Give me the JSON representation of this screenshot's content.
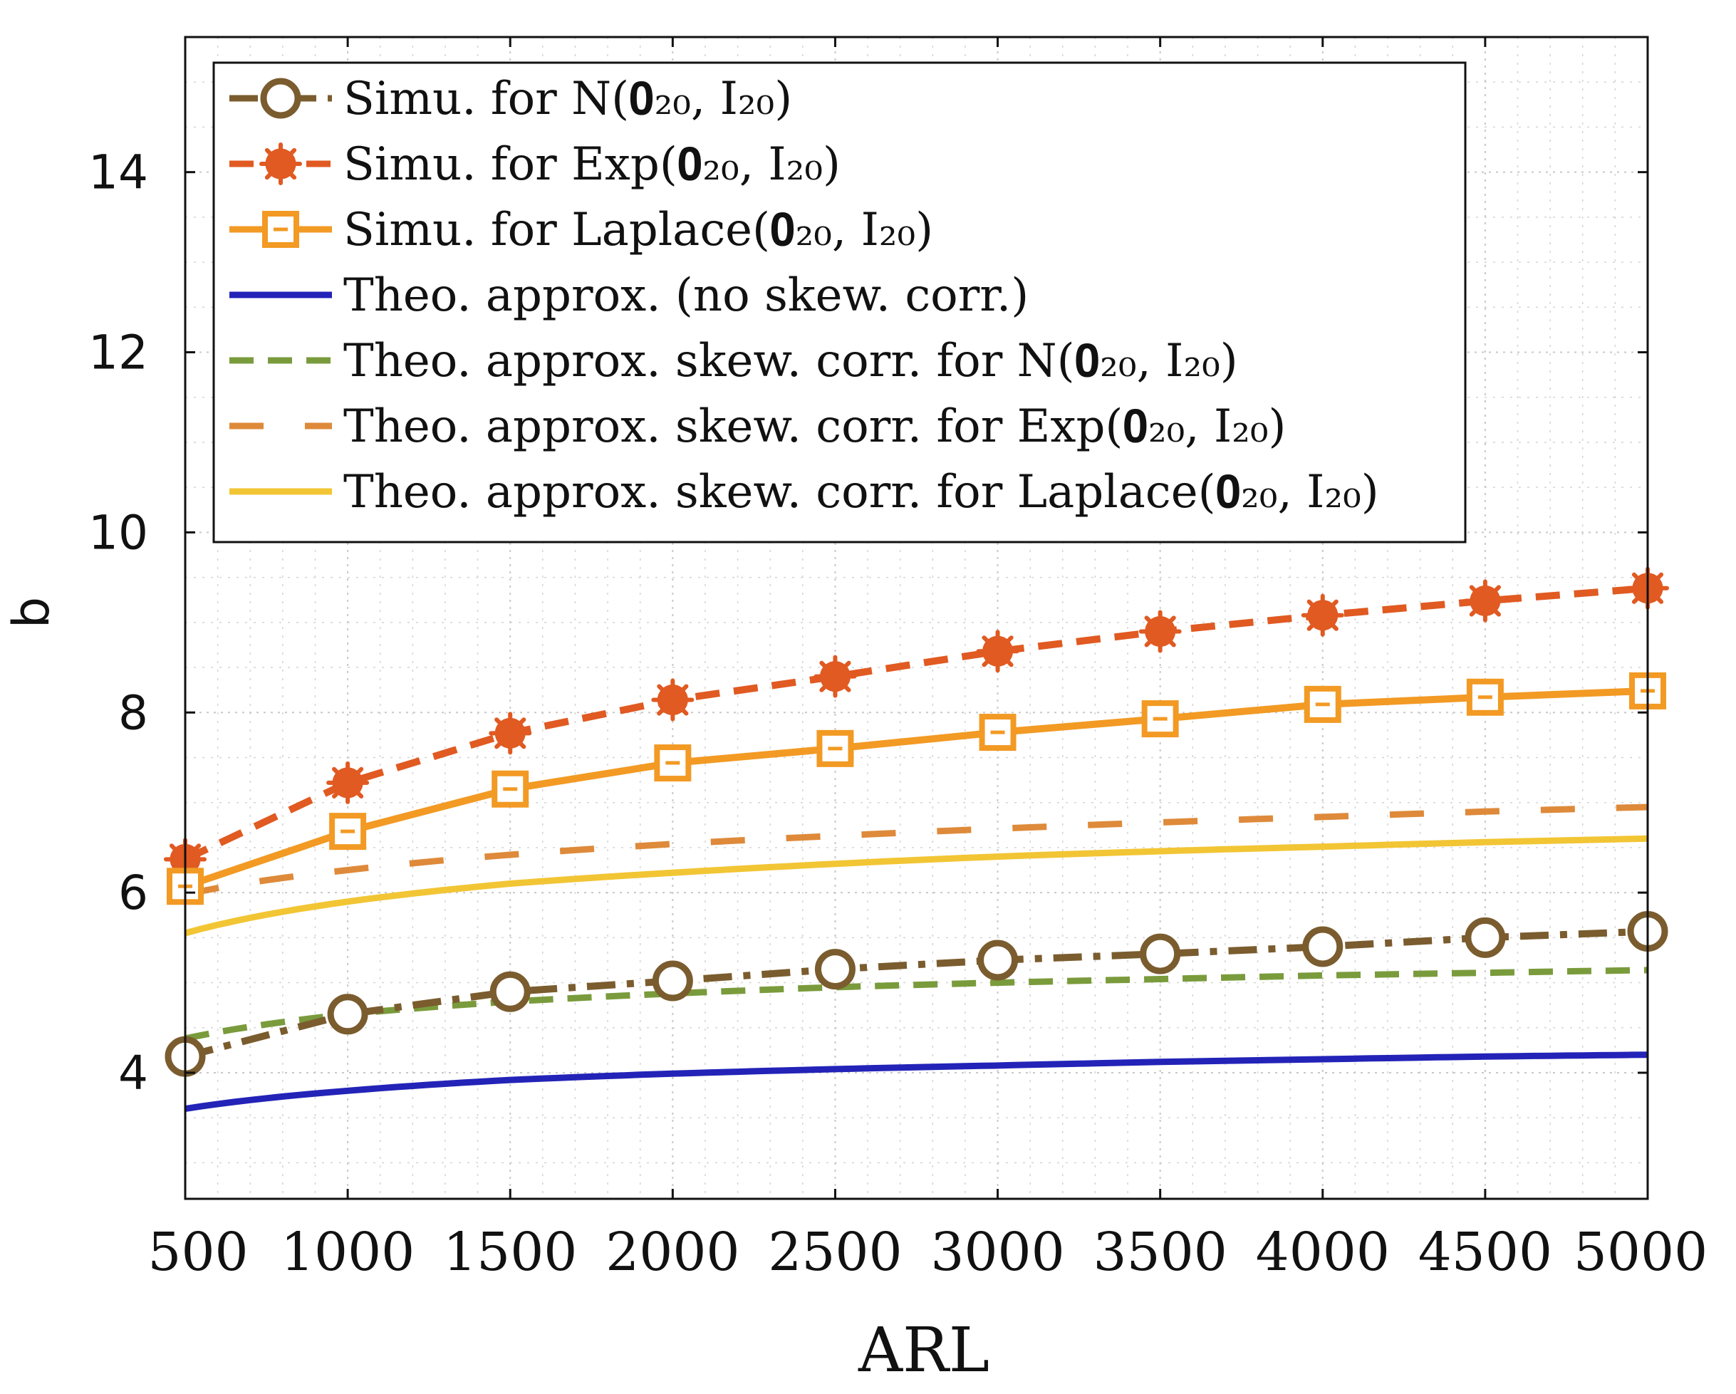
{
  "chart_data": {
    "type": "line",
    "title": "",
    "xlabel": "ARL",
    "ylabel": "b",
    "x": [
      500,
      1000,
      1500,
      2000,
      2500,
      3000,
      3500,
      4000,
      4500,
      5000
    ],
    "xlim": [
      500,
      5000
    ],
    "ylim": [
      2.6,
      15.5
    ],
    "x_ticks": [
      500,
      1000,
      1500,
      2000,
      2500,
      3000,
      3500,
      4000,
      4500,
      5000
    ],
    "x_tick_labels": [
      "500",
      "1000",
      "1500",
      "2000",
      "2500",
      "3000",
      "3500",
      "4000",
      "4500",
      "5000"
    ],
    "y_ticks": [
      4,
      6,
      8,
      10,
      12,
      14
    ],
    "y_tick_labels": [
      "4",
      "6",
      "8",
      "10",
      "12",
      "14"
    ],
    "grid": true,
    "legend_position": "top-left",
    "series": [
      {
        "name": "Simu. for N(0_20, I_20)",
        "legend_text": "Simu. for N(𝟎₂₀, I₂₀)",
        "color": "#7a5c2e",
        "dash": "dashdot",
        "marker": "circle-open",
        "values": [
          4.18,
          4.65,
          4.9,
          5.02,
          5.15,
          5.25,
          5.32,
          5.4,
          5.5,
          5.57
        ]
      },
      {
        "name": "Simu. for Exp(0_20, I_20)",
        "legend_text": "Simu. for Exp(𝟎₂₀, I₂₀)",
        "color": "#e05a22",
        "dash": "dashed",
        "marker": "star-filled",
        "values": [
          6.37,
          7.22,
          7.77,
          8.14,
          8.4,
          8.68,
          8.9,
          9.08,
          9.24,
          9.38
        ]
      },
      {
        "name": "Simu. for Laplace(0_20, I_20)",
        "legend_text": "Simu. for Laplace(𝟎₂₀, I₂₀)",
        "color": "#f29a24",
        "dash": "solid",
        "marker": "square-open",
        "values": [
          6.07,
          6.68,
          7.15,
          7.44,
          7.6,
          7.78,
          7.93,
          8.09,
          8.17,
          8.24
        ]
      },
      {
        "name": "Theo. approx. (no skew. corr.)",
        "legend_text": "Theo. approx. (no skew. corr.)",
        "color": "#2323b8",
        "dash": "solid",
        "marker": "none",
        "values": [
          3.6,
          3.8,
          3.92,
          3.99,
          4.04,
          4.08,
          4.12,
          4.15,
          4.18,
          4.2
        ]
      },
      {
        "name": "Theo. approx. skew. corr. for N(0_20, I_20)",
        "legend_text": "Theo. approx. skew. corr. for N(𝟎₂₀, I₂₀)",
        "color": "#7a9b3c",
        "dash": "dashed",
        "marker": "none",
        "values": [
          4.38,
          4.65,
          4.79,
          4.88,
          4.95,
          5.0,
          5.04,
          5.08,
          5.11,
          5.14
        ]
      },
      {
        "name": "Theo. approx. skew. corr. for Exp(0_20, I_20)",
        "legend_text": "Theo. approx. skew. corr. for Exp(𝟎₂₀, I₂₀)",
        "color": "#de8a3a",
        "dash": "longdash",
        "marker": "none",
        "values": [
          5.98,
          6.25,
          6.42,
          6.54,
          6.63,
          6.71,
          6.78,
          6.84,
          6.9,
          6.95
        ]
      },
      {
        "name": "Theo. approx. skew. corr. for Laplace(0_20, I_20)",
        "legend_text": "Theo. approx. skew. corr. for Laplace(𝟎₂₀, I₂₀)",
        "color": "#f2c534",
        "dash": "solid",
        "marker": "none",
        "values": [
          5.55,
          5.9,
          6.1,
          6.22,
          6.32,
          6.4,
          6.46,
          6.51,
          6.56,
          6.6
        ]
      }
    ]
  }
}
